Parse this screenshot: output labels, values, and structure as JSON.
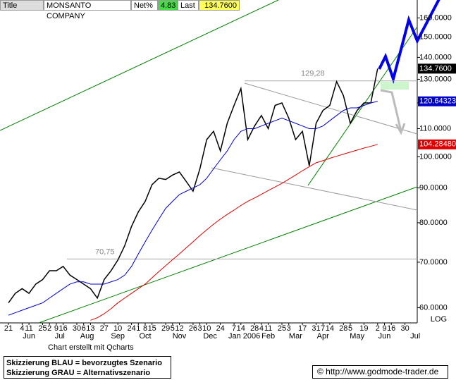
{
  "header": {
    "title": "Title",
    "name": "MONSANTO COMPANY",
    "net_label": "Net%",
    "net": "4.83",
    "last_label": "Last",
    "last": "134.7600"
  },
  "chart_data": {
    "type": "line",
    "log_scale": true,
    "axis_note": "LOG",
    "categories": [
      "21",
      null,
      "4",
      "11",
      null,
      "25",
      "2",
      "9",
      "16",
      null,
      "30",
      "6",
      "13",
      null,
      "27",
      null,
      "10",
      null,
      "24",
      "1",
      "8",
      "15",
      null,
      "29",
      "5",
      "12",
      null,
      "26",
      "3",
      "10",
      null,
      "24",
      null,
      "7",
      "14",
      null,
      "28",
      "4",
      "11",
      null,
      "25",
      "3",
      null,
      "17",
      null,
      "31",
      "7",
      "14",
      null,
      "28",
      "5",
      null,
      "19",
      null,
      "2",
      "9",
      "16",
      null,
      "30",
      null,
      null
    ],
    "month_ticks": [
      {
        "value": 3,
        "label": "Jun"
      },
      {
        "value": 7.5,
        "label": "Jul"
      },
      {
        "value": 11.5,
        "label": "Aug"
      },
      {
        "value": 16,
        "label": "Sep"
      },
      {
        "value": 20,
        "label": "Oct"
      },
      {
        "value": 25,
        "label": "Nov"
      },
      {
        "value": 29.5,
        "label": "Dec"
      },
      {
        "value": 34.5,
        "label": "Jan 2006"
      },
      {
        "value": 38,
        "label": "Feb"
      },
      {
        "value": 42,
        "label": "Mar"
      },
      {
        "value": 46,
        "label": "Apr"
      },
      {
        "value": 51,
        "label": "May"
      },
      {
        "value": 55,
        "label": "Jun"
      },
      {
        "value": 59.5,
        "label": "Jul"
      }
    ],
    "series": [
      {
        "color": "#000000",
        "values": [
          61,
          63,
          64,
          63,
          65,
          66,
          68,
          68,
          69,
          67,
          66,
          65,
          64,
          62,
          66,
          68,
          70.5,
          74,
          79,
          83,
          86,
          91,
          93,
          92.6,
          94,
          95,
          92,
          89,
          96,
          106,
          109,
          102,
          112,
          119,
          126,
          106,
          111,
          115,
          110,
          119,
          120,
          114,
          106,
          109,
          97,
          112,
          117,
          119,
          129,
          123,
          112,
          117,
          120,
          120,
          134.76,
          null,
          null,
          null,
          null,
          null,
          null
        ],
        "last_value_label": "134.7600"
      },
      {
        "color": "#0000cc",
        "values": [
          58.5,
          59,
          59.5,
          60,
          60.5,
          61,
          62,
          63,
          64,
          65,
          65.5,
          65.5,
          65,
          65,
          65,
          65.5,
          66,
          67,
          69,
          72,
          75,
          78,
          81,
          84,
          86,
          88,
          89,
          90,
          91,
          93,
          96,
          99,
          102,
          106,
          109,
          110,
          110,
          111,
          112,
          113,
          114,
          113,
          112,
          111,
          110,
          110,
          111,
          113,
          115,
          117,
          118,
          118,
          119,
          120,
          120.64323,
          null,
          null,
          null,
          null,
          null,
          null
        ],
        "last_value_label": "120.64323"
      },
      {
        "color": "#dd0000",
        "values": [
          null,
          null,
          null,
          null,
          null,
          null,
          null,
          null,
          null,
          null,
          null,
          null,
          57.5,
          58,
          58.8,
          59.8,
          61,
          62,
          63,
          64,
          65,
          66.4,
          67.8,
          69.2,
          70.6,
          72,
          73.5,
          75,
          76.6,
          78.1,
          79.6,
          81,
          82.3,
          83.5,
          84.8,
          86,
          87,
          88.1,
          89.2,
          90.3,
          91.4,
          92.7,
          94,
          95.4,
          96.7,
          98,
          98.7,
          99.5,
          100.2,
          100.9,
          101.6,
          102.3,
          103,
          103.6,
          104.2848,
          null,
          null,
          null,
          null,
          null,
          null
        ],
        "last_value_label": "104.28480"
      }
    ],
    "levels": [
      {
        "value": 129.28,
        "label": "129,28"
      },
      {
        "value": 70.75,
        "label": "70,75"
      }
    ],
    "ylim": [
      57,
      170
    ],
    "yticks": [
      {
        "value": 60,
        "label": "60.0000"
      },
      {
        "value": 70,
        "label": "70.0000"
      },
      {
        "value": 80,
        "label": "80.0000"
      },
      {
        "value": 90,
        "label": "90.0000"
      },
      {
        "value": 100,
        "label": "100.0000"
      },
      {
        "value": 110,
        "label": "110.0000"
      },
      {
        "value": 120,
        "label": "120.0000"
      },
      {
        "value": 130,
        "label": "130.0000"
      },
      {
        "value": 140,
        "label": "140.0000"
      },
      {
        "value": 150,
        "label": "150.0000"
      },
      {
        "value": 160,
        "label": "160.0000"
      }
    ]
  },
  "footer": {
    "credit": "Chart erstellt mit Qcharts",
    "legend_blue": "Skizzierung BLAU = bevorzugtes Szenario",
    "legend_gray": "Skizzierung GRAU = Alternativszenario",
    "copyright": "© http://www.godmode-trader.de"
  }
}
